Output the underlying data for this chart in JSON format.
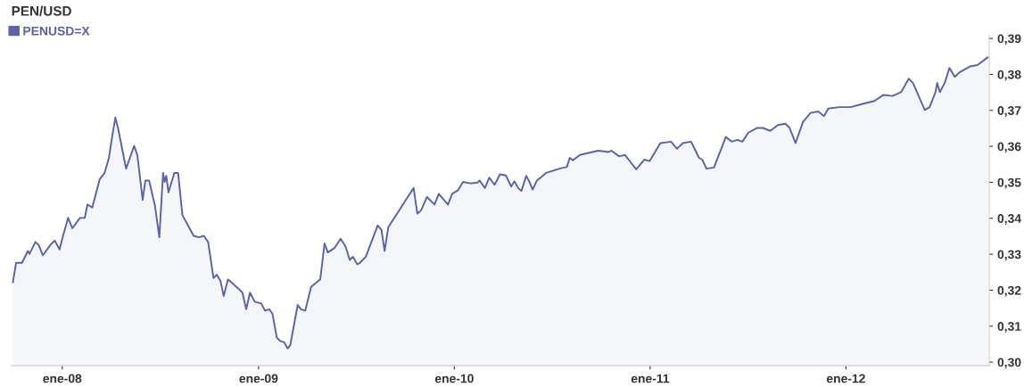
{
  "chart_data": {
    "type": "area",
    "title": "PEN/USD",
    "legend": "top left",
    "grid": false,
    "xlim": [
      "2007-09-28",
      "2012-09-24"
    ],
    "ylim": [
      0.299,
      0.391
    ],
    "xticks": [
      {
        "value": "2008-01-01",
        "label": "ene-08"
      },
      {
        "value": "2009-01-01",
        "label": "ene-09"
      },
      {
        "value": "2010-01-01",
        "label": "ene-10"
      },
      {
        "value": "2011-01-01",
        "label": "ene-11"
      },
      {
        "value": "2012-01-01",
        "label": "ene-12"
      }
    ],
    "yticks": [
      {
        "value": 0.3,
        "label": "0,30"
      },
      {
        "value": 0.31,
        "label": "0,31"
      },
      {
        "value": 0.32,
        "label": "0,32"
      },
      {
        "value": 0.33,
        "label": "0,33"
      },
      {
        "value": 0.34,
        "label": "0,34"
      },
      {
        "value": 0.35,
        "label": "0,35"
      },
      {
        "value": 0.36,
        "label": "0,36"
      },
      {
        "value": 0.37,
        "label": "0,37"
      },
      {
        "value": 0.38,
        "label": "0,38"
      },
      {
        "value": 0.39,
        "label": "0,39"
      }
    ],
    "series": [
      {
        "name": "PENUSD=X",
        "color": "#5a63a8",
        "x": [
          "2007-10-01",
          "2007-10-07",
          "2007-10-18",
          "2007-10-29",
          "2007-11-01",
          "2007-11-12",
          "2007-11-18",
          "2007-11-26",
          "2007-12-10",
          "2007-12-18",
          "2007-12-27",
          "2008-01-01",
          "2008-01-12",
          "2008-01-20",
          "2008-02-03",
          "2008-02-12",
          "2008-02-17",
          "2008-02-26",
          "2008-03-11",
          "2008-03-20",
          "2008-03-28",
          "2008-04-03",
          "2008-04-09",
          "2008-04-14",
          "2008-04-29",
          "2008-05-05",
          "2008-05-14",
          "2008-05-20",
          "2008-05-30",
          "2008-06-04",
          "2008-06-11",
          "2008-06-22",
          "2008-06-30",
          "2008-07-07",
          "2008-07-10",
          "2008-07-13",
          "2008-07-17",
          "2008-07-28",
          "2008-08-04",
          "2008-08-12",
          "2008-09-02",
          "2008-09-12",
          "2008-09-21",
          "2008-09-29",
          "2008-10-09",
          "2008-10-15",
          "2008-10-22",
          "2008-10-28",
          "2008-11-05",
          "2008-11-24",
          "2008-12-02",
          "2008-12-09",
          "2008-12-16",
          "2008-12-25",
          "2009-01-06",
          "2009-01-13",
          "2009-01-21",
          "2009-01-27",
          "2009-02-04",
          "2009-02-10",
          "2009-02-18",
          "2009-02-24",
          "2009-03-01",
          "2009-03-15",
          "2009-03-21",
          "2009-03-29",
          "2009-04-09",
          "2009-04-26",
          "2009-05-04",
          "2009-05-10",
          "2009-05-23",
          "2009-06-03",
          "2009-06-12",
          "2009-06-20",
          "2009-06-26",
          "2009-07-04",
          "2009-07-09",
          "2009-07-20",
          "2009-08-11",
          "2009-08-18",
          "2009-08-24",
          "2009-08-31",
          "2009-09-22",
          "2009-10-06",
          "2009-10-17",
          "2009-10-24",
          "2009-10-31",
          "2009-11-11",
          "2009-11-25",
          "2009-12-03",
          "2009-12-20",
          "2009-12-28",
          "2010-01-08",
          "2010-01-17",
          "2010-01-31",
          "2010-02-13",
          "2010-02-17",
          "2010-02-27",
          "2010-03-07",
          "2010-03-17",
          "2010-03-27",
          "2010-04-07",
          "2010-04-17",
          "2010-04-23",
          "2010-04-30",
          "2010-05-06",
          "2010-05-15",
          "2010-05-21",
          "2010-05-27",
          "2010-06-04",
          "2010-06-21",
          "2010-07-16",
          "2010-07-30",
          "2010-08-04",
          "2010-08-10",
          "2010-08-23",
          "2010-09-26",
          "2010-10-07",
          "2010-10-15",
          "2010-10-21",
          "2010-11-04",
          "2010-11-15",
          "2010-12-06",
          "2010-12-21",
          "2010-12-31",
          "2011-01-20",
          "2011-02-09",
          "2011-02-20",
          "2011-03-03",
          "2011-03-17",
          "2011-03-19",
          "2011-04-02",
          "2011-04-08",
          "2011-04-16",
          "2011-04-30",
          "2011-05-22",
          "2011-06-02",
          "2011-06-13",
          "2011-06-22",
          "2011-07-03",
          "2011-07-19",
          "2011-07-30",
          "2011-08-13",
          "2011-08-27",
          "2011-09-10",
          "2011-09-18",
          "2011-09-29",
          "2011-10-13",
          "2011-10-27",
          "2011-11-10",
          "2011-11-21",
          "2011-11-29",
          "2011-12-19",
          "2012-01-10",
          "2012-02-01",
          "2012-02-23",
          "2012-03-11",
          "2012-03-28",
          "2012-04-07",
          "2012-04-13",
          "2012-04-27",
          "2012-05-05",
          "2012-05-27",
          "2012-06-05",
          "2012-06-16",
          "2012-06-19",
          "2012-06-24",
          "2012-07-03",
          "2012-07-12",
          "2012-07-22",
          "2012-07-30",
          "2012-08-19",
          "2012-09-02",
          "2012-09-21"
        ],
        "values": [
          0.3222,
          0.3276,
          0.3276,
          0.3309,
          0.3301,
          0.3334,
          0.3326,
          0.3297,
          0.3326,
          0.3338,
          0.3313,
          0.3343,
          0.3401,
          0.3372,
          0.3401,
          0.3401,
          0.3438,
          0.343,
          0.3509,
          0.3526,
          0.3568,
          0.3626,
          0.368,
          0.3651,
          0.3538,
          0.3563,
          0.3601,
          0.3576,
          0.3451,
          0.3505,
          0.3505,
          0.3434,
          0.3347,
          0.3526,
          0.3501,
          0.3518,
          0.3472,
          0.3526,
          0.3526,
          0.3409,
          0.3351,
          0.3347,
          0.3351,
          0.3334,
          0.3234,
          0.3243,
          0.3226,
          0.3184,
          0.323,
          0.3205,
          0.3193,
          0.3147,
          0.3193,
          0.3168,
          0.3163,
          0.3143,
          0.3147,
          0.3134,
          0.3068,
          0.3059,
          0.3055,
          0.3038,
          0.3047,
          0.3159,
          0.3147,
          0.3143,
          0.3209,
          0.323,
          0.333,
          0.3305,
          0.3318,
          0.3343,
          0.3322,
          0.3284,
          0.3293,
          0.3272,
          0.3276,
          0.3293,
          0.338,
          0.3368,
          0.3309,
          0.3376,
          0.3426,
          0.3459,
          0.3484,
          0.3413,
          0.3422,
          0.3459,
          0.3438,
          0.3468,
          0.3438,
          0.3468,
          0.3478,
          0.3501,
          0.3497,
          0.3499,
          0.3505,
          0.3484,
          0.3513,
          0.3493,
          0.3522,
          0.3519,
          0.3488,
          0.3503,
          0.3484,
          0.3476,
          0.3518,
          0.3501,
          0.348,
          0.3505,
          0.3526,
          0.3538,
          0.3543,
          0.3568,
          0.3561,
          0.3576,
          0.3588,
          0.3586,
          0.3584,
          0.3588,
          0.3572,
          0.3576,
          0.3536,
          0.3563,
          0.3559,
          0.3609,
          0.3613,
          0.3593,
          0.3609,
          0.3613,
          0.3611,
          0.3568,
          0.3563,
          0.3538,
          0.3541,
          0.3626,
          0.3613,
          0.3618,
          0.3613,
          0.3638,
          0.3651,
          0.3651,
          0.3643,
          0.3659,
          0.3663,
          0.3651,
          0.3609,
          0.3668,
          0.3693,
          0.3697,
          0.3684,
          0.3705,
          0.3709,
          0.3709,
          0.3718,
          0.3726,
          0.3743,
          0.374,
          0.3747,
          0.3751,
          0.3788,
          0.3776,
          0.3701,
          0.3709,
          0.3751,
          0.3776,
          0.3751,
          0.3776,
          0.3818,
          0.3793,
          0.3805,
          0.3822,
          0.3826,
          0.3847
        ]
      }
    ]
  }
}
